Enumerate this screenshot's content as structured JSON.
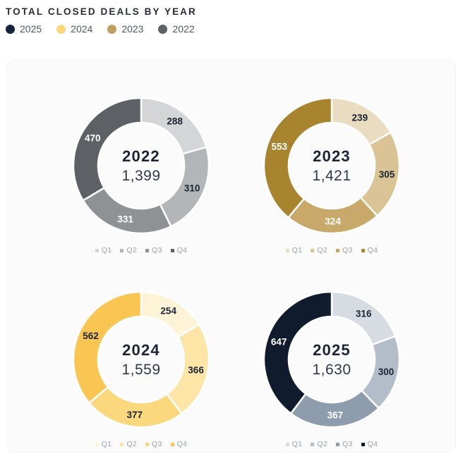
{
  "title": "TOTAL CLOSED DEALS BY YEAR",
  "colors": {
    "text_dark": "#1b2435",
    "total_text": "#2e3847",
    "mini_legend_text": "#9aa0a5",
    "legend_text": "#4f585f",
    "card_bg": "#fbfbfb"
  },
  "legend": [
    {
      "label": "2025",
      "color": "#16243c"
    },
    {
      "label": "2024",
      "color": "#f9d77b"
    },
    {
      "label": "2023",
      "color": "#bfa05e"
    },
    {
      "label": "2022",
      "color": "#5e6265"
    }
  ],
  "chart_data": [
    {
      "type": "pie",
      "title": "2022",
      "year": "2022",
      "total_label": "1,399",
      "total": 1399,
      "categories": [
        "Q1",
        "Q2",
        "Q3",
        "Q4"
      ],
      "values": [
        288,
        310,
        331,
        470
      ],
      "colors": [
        "#d3d5d6",
        "#b3b6b8",
        "#8f9295",
        "#5d6165"
      ],
      "value_label_colors": [
        "#1b2435",
        "#1b2435",
        "#ffffff",
        "#ffffff"
      ],
      "legend_position": "bottom"
    },
    {
      "type": "pie",
      "title": "2023",
      "year": "2023",
      "total_label": "1,421",
      "total": 1421,
      "categories": [
        "Q1",
        "Q2",
        "Q3",
        "Q4"
      ],
      "values": [
        239,
        305,
        324,
        553
      ],
      "colors": [
        "#e9dcc1",
        "#dac394",
        "#c9a969",
        "#a8842f"
      ],
      "value_label_colors": [
        "#1b2435",
        "#1b2435",
        "#ffffff",
        "#ffffff"
      ],
      "legend_position": "bottom"
    },
    {
      "type": "pie",
      "title": "2024",
      "year": "2024",
      "total_label": "1,559",
      "total": 1559,
      "categories": [
        "Q1",
        "Q2",
        "Q3",
        "Q4"
      ],
      "values": [
        254,
        366,
        377,
        562
      ],
      "colors": [
        "#fdf3d7",
        "#fce5a7",
        "#fbd87e",
        "#f9c653"
      ],
      "value_label_colors": [
        "#1b2435",
        "#1b2435",
        "#1b2435",
        "#1b2435"
      ],
      "legend_position": "bottom"
    },
    {
      "type": "pie",
      "title": "2025",
      "year": "2025",
      "total_label": "1,630",
      "total": 1630,
      "categories": [
        "Q1",
        "Q2",
        "Q3",
        "Q4"
      ],
      "values": [
        316,
        300,
        367,
        647
      ],
      "colors": [
        "#d7dce2",
        "#b3bdc9",
        "#8e9dad",
        "#101b2e"
      ],
      "value_label_colors": [
        "#1b2435",
        "#1b2435",
        "#ffffff",
        "#ffffff"
      ],
      "legend_position": "bottom"
    }
  ]
}
